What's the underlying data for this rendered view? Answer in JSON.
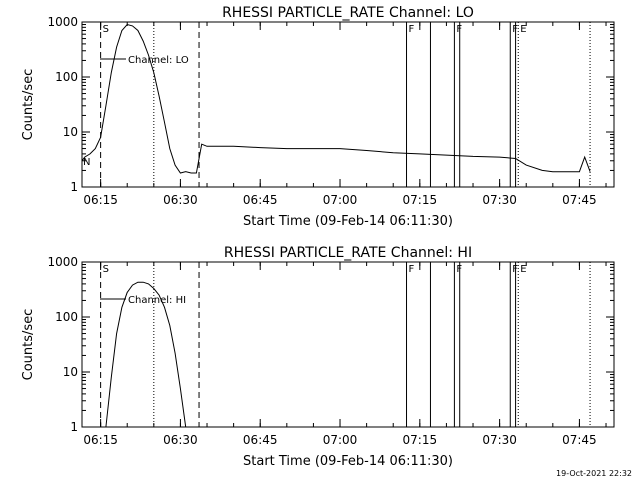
{
  "footer": {
    "timestamp": "19-Oct-2021 22:32"
  },
  "chart_data": [
    {
      "type": "line",
      "title": "RHESSI PARTICLE_RATE Channel: LO",
      "xlabel": "Start Time (09-Feb-14 06:11:30)",
      "ylabel": "Counts/sec",
      "yscale": "log",
      "xlim": [
        "06:11:30",
        "07:51:30"
      ],
      "ylim": [
        1,
        1000
      ],
      "xticks": [
        "06:15",
        "06:30",
        "06:45",
        "07:00",
        "07:15",
        "07:30",
        "07:45"
      ],
      "yticks": [
        "1",
        "10",
        "100",
        "1000"
      ],
      "legend": {
        "text": "Channel: LO",
        "placement": "top-left"
      },
      "series": [
        {
          "name": "Channel: LO",
          "x": [
            "06:11:30",
            "06:12:00",
            "06:13:00",
            "06:14:00",
            "06:15:00",
            "06:16:00",
            "06:17:00",
            "06:18:00",
            "06:19:00",
            "06:20:00",
            "06:21:00",
            "06:22:00",
            "06:23:00",
            "06:24:00",
            "06:25:00",
            "06:26:00",
            "06:27:00",
            "06:28:00",
            "06:29:00",
            "06:30:00",
            "06:31:00",
            "06:32:00",
            "06:33:00",
            "06:34:00",
            "06:35:00",
            "06:40:00",
            "06:45:00",
            "06:50:00",
            "06:55:00",
            "07:00:00",
            "07:05:00",
            "07:10:00",
            "07:15:00",
            "07:20:00",
            "07:25:00",
            "07:30:00",
            "07:33:00",
            "07:35:00",
            "07:38:00",
            "07:40:00",
            "07:43:00",
            "07:45:00",
            "07:46:00",
            "07:47:00"
          ],
          "y": [
            3,
            3.5,
            4,
            5,
            8,
            30,
            120,
            350,
            700,
            900,
            850,
            700,
            450,
            250,
            120,
            45,
            15,
            5,
            2.5,
            1.8,
            1.9,
            1.8,
            1.8,
            6,
            5.5,
            5.5,
            5.2,
            5,
            5,
            5,
            4.6,
            4.2,
            4.0,
            3.8,
            3.6,
            3.5,
            3.3,
            2.5,
            2.0,
            1.9,
            1.9,
            1.9,
            3.5,
            1.9
          ]
        }
      ],
      "markers": {
        "dashed": [
          "06:15:00",
          "06:33:30"
        ],
        "dotted": [
          "06:25:00",
          "07:33:30",
          "07:47:00"
        ],
        "solid": [
          "07:12:30",
          "07:17:00",
          "07:21:30",
          "07:22:30",
          "07:32:00",
          "07:33:00"
        ]
      },
      "marker_labels": [
        {
          "text": "S",
          "at": "06:15:00"
        },
        {
          "text": "F",
          "at": "07:12:30"
        },
        {
          "text": "F",
          "at": "07:21:30"
        },
        {
          "text": "F",
          "at": "07:32:00"
        },
        {
          "text": "E",
          "at": "07:33:30"
        }
      ],
      "corner_label": "N"
    },
    {
      "type": "line",
      "title": "RHESSI PARTICLE_RATE Channel: HI",
      "xlabel": "Start Time (09-Feb-14 06:11:30)",
      "ylabel": "Counts/sec",
      "yscale": "log",
      "xlim": [
        "06:11:30",
        "07:51:30"
      ],
      "ylim": [
        1,
        1000
      ],
      "xticks": [
        "06:15",
        "06:30",
        "06:45",
        "07:00",
        "07:15",
        "07:30",
        "07:45"
      ],
      "yticks": [
        "1",
        "10",
        "100",
        "1000"
      ],
      "legend": {
        "text": "Channel: HI",
        "placement": "top-left"
      },
      "series": [
        {
          "name": "Channel: HI",
          "x": [
            "06:16:00",
            "06:17:00",
            "06:18:00",
            "06:19:00",
            "06:20:00",
            "06:21:00",
            "06:22:00",
            "06:23:00",
            "06:24:00",
            "06:25:00",
            "06:26:00",
            "06:27:00",
            "06:28:00",
            "06:29:00",
            "06:30:00",
            "06:31:00"
          ],
          "y": [
            1,
            8,
            50,
            150,
            280,
            380,
            430,
            430,
            400,
            330,
            250,
            150,
            70,
            22,
            5,
            1
          ]
        }
      ],
      "markers": {
        "dashed": [
          "06:15:00",
          "06:33:30"
        ],
        "dotted": [
          "06:25:00",
          "07:33:30",
          "07:47:00"
        ],
        "solid": [
          "07:12:30",
          "07:17:00",
          "07:21:30",
          "07:22:30",
          "07:32:00",
          "07:33:00"
        ]
      },
      "marker_labels": [
        {
          "text": "S",
          "at": "06:15:00"
        },
        {
          "text": "F",
          "at": "07:12:30"
        },
        {
          "text": "F",
          "at": "07:21:30"
        },
        {
          "text": "F",
          "at": "07:32:00"
        },
        {
          "text": "E",
          "at": "07:33:30"
        }
      ],
      "corner_label": ""
    }
  ]
}
